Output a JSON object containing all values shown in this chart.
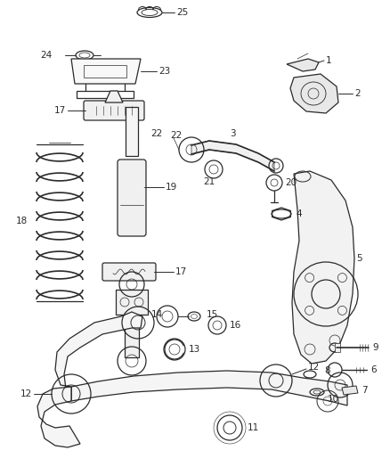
{
  "bg_color": "#ffffff",
  "lc": "#2a2a2a",
  "lc2": "#555555",
  "figsize": [
    4.38,
    5.33
  ],
  "dpi": 100,
  "xlim": [
    0,
    438
  ],
  "ylim": [
    0,
    533
  ]
}
